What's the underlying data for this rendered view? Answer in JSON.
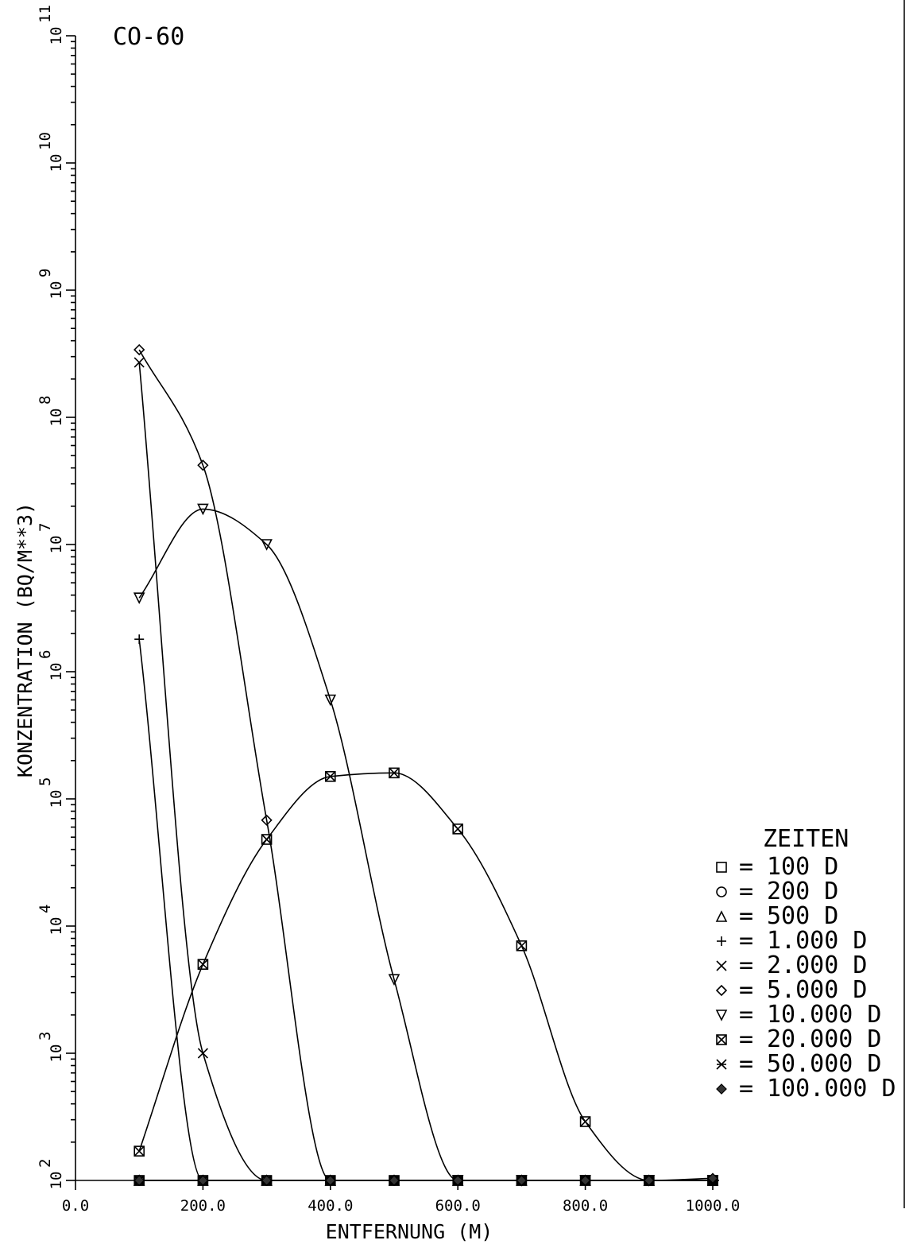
{
  "chart_data": {
    "type": "line",
    "title": "CO-60",
    "xlabel": "ENTFERNUNG (M)",
    "ylabel": "KONZENTRATION (BQ/M**3)",
    "xlim": [
      0,
      1000
    ],
    "ylim": [
      100,
      100000000000
    ],
    "yscale": "log",
    "x_ticks": [
      "0.0",
      "200.0",
      "400.0",
      "600.0",
      "800.0",
      "1000.0"
    ],
    "y_tick_bases": [
      "10",
      "10",
      "10",
      "10",
      "10",
      "10",
      "10",
      "10",
      "10",
      "10"
    ],
    "y_tick_exponents": [
      "2",
      "3",
      "4",
      "5",
      "6",
      "7",
      "8",
      "9",
      "10",
      "11"
    ],
    "legend": {
      "title": "ZEITEN",
      "position": "right"
    },
    "series": [
      {
        "name": "100 D",
        "marker": "square",
        "x": [
          100,
          200,
          300,
          400,
          500,
          600,
          700,
          800,
          900,
          1000
        ],
        "y": [
          100,
          100,
          100,
          100,
          100,
          100,
          100,
          100,
          100,
          100
        ]
      },
      {
        "name": "200 D",
        "marker": "circle",
        "x": [
          100,
          200,
          300,
          400,
          500,
          600,
          700,
          800,
          900,
          1000
        ],
        "y": [
          100,
          100,
          100,
          100,
          100,
          100,
          100,
          100,
          100,
          100
        ]
      },
      {
        "name": "500 D",
        "marker": "triangle",
        "x": [
          100,
          200,
          300,
          400,
          500,
          600,
          700,
          800,
          900,
          1000
        ],
        "y": [
          100,
          100,
          100,
          100,
          100,
          100,
          100,
          100,
          100,
          100
        ]
      },
      {
        "name": "1.000 D",
        "marker": "plus",
        "x": [
          100,
          200,
          300,
          400,
          500,
          600,
          700,
          800,
          900,
          1000
        ],
        "y": [
          1800000,
          100,
          100,
          100,
          100,
          100,
          100,
          100,
          100,
          100
        ]
      },
      {
        "name": "2.000 D",
        "marker": "x",
        "x": [
          100,
          200,
          300,
          400,
          500,
          600,
          700,
          800,
          900,
          1000
        ],
        "y": [
          270000000,
          1000,
          100,
          100,
          100,
          100,
          100,
          100,
          100,
          100
        ]
      },
      {
        "name": "5.000 D",
        "marker": "diamond",
        "x": [
          100,
          200,
          300,
          400,
          500,
          600,
          700,
          800,
          900,
          1000
        ],
        "y": [
          340000000,
          42000000,
          68000,
          100,
          100,
          100,
          100,
          100,
          100,
          100
        ]
      },
      {
        "name": "10.000 D",
        "marker": "triangle-down",
        "x": [
          100,
          200,
          300,
          400,
          500,
          600,
          700,
          800,
          900,
          1000
        ],
        "y": [
          3800000,
          19000000,
          10000000,
          600000,
          3800,
          100,
          100,
          100,
          100,
          100
        ]
      },
      {
        "name": "20.000 D",
        "marker": "square-x",
        "x": [
          100,
          200,
          300,
          400,
          500,
          600,
          700,
          800,
          900,
          1000
        ],
        "y": [
          170,
          5000,
          48000,
          150000,
          160000,
          58000,
          7000,
          290,
          100,
          100
        ]
      },
      {
        "name": "50.000 D",
        "marker": "star",
        "x": [
          100,
          200,
          300,
          400,
          500,
          600,
          700,
          800,
          900,
          1000
        ],
        "y": [
          100,
          100,
          100,
          100,
          100,
          100,
          100,
          100,
          100,
          100
        ]
      },
      {
        "name": "100.000 D",
        "marker": "filled-diamond",
        "x": [
          100,
          200,
          300,
          400,
          500,
          600,
          700,
          800,
          900,
          1000
        ],
        "y": [
          100,
          100,
          100,
          100,
          100,
          100,
          100,
          100,
          100,
          104
        ]
      }
    ]
  }
}
